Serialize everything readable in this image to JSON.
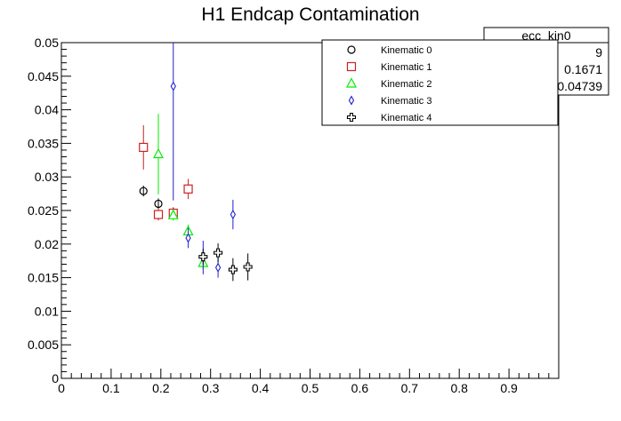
{
  "chart_data": {
    "type": "scatter",
    "title": "H1 Endcap Contamination",
    "xlabel": "",
    "ylabel": "",
    "xlim": [
      0,
      1
    ],
    "ylim": [
      0,
      0.05
    ],
    "x_ticks": [
      "0",
      "0.1",
      "0.2",
      "0.3",
      "0.4",
      "0.5",
      "0.6",
      "0.7",
      "0.8",
      "0.9"
    ],
    "y_ticks": [
      "0",
      "0.005",
      "0.01",
      "0.015",
      "0.02",
      "0.025",
      "0.03",
      "0.035",
      "0.04",
      "0.045",
      "0.05"
    ],
    "grid": false,
    "legend_position": "top-right",
    "series": [
      {
        "name": "Kinematic 0",
        "marker": "circle",
        "color": "#000000",
        "points": [
          {
            "x": 0.165,
            "y": 0.0279,
            "err": 0.0008
          },
          {
            "x": 0.195,
            "y": 0.026,
            "err": 0.0008
          },
          {
            "x": 0.225,
            "y": 0.0246,
            "err": 0.0008
          }
        ]
      },
      {
        "name": "Kinematic 1",
        "marker": "square",
        "color": "#cc2222",
        "points": [
          {
            "x": 0.165,
            "y": 0.0344,
            "err": 0.0033
          },
          {
            "x": 0.195,
            "y": 0.0244,
            "err": 0.0009
          },
          {
            "x": 0.225,
            "y": 0.0246,
            "err": 0.0009
          },
          {
            "x": 0.255,
            "y": 0.0282,
            "err": 0.0015
          }
        ]
      },
      {
        "name": "Kinematic 2",
        "marker": "triangle",
        "color": "#00ee00",
        "points": [
          {
            "x": 0.195,
            "y": 0.0334,
            "err": 0.006
          },
          {
            "x": 0.225,
            "y": 0.0243,
            "err": 0.0008
          },
          {
            "x": 0.255,
            "y": 0.0219,
            "err": 0.001
          },
          {
            "x": 0.285,
            "y": 0.0172,
            "err": 0.001
          }
        ]
      },
      {
        "name": "Kinematic 3",
        "marker": "diamond",
        "color": "#2222cc",
        "points": [
          {
            "x": 0.225,
            "y": 0.0435,
            "err": 0.017
          },
          {
            "x": 0.255,
            "y": 0.0209,
            "err": 0.0015
          },
          {
            "x": 0.285,
            "y": 0.018,
            "err": 0.0025
          },
          {
            "x": 0.315,
            "y": 0.0165,
            "err": 0.0015
          },
          {
            "x": 0.345,
            "y": 0.0244,
            "err": 0.0022
          }
        ]
      },
      {
        "name": "Kinematic 4",
        "marker": "cross",
        "color": "#000000",
        "points": [
          {
            "x": 0.285,
            "y": 0.0181,
            "err": 0.0012
          },
          {
            "x": 0.315,
            "y": 0.0187,
            "err": 0.0014
          },
          {
            "x": 0.345,
            "y": 0.0162,
            "err": 0.0017
          },
          {
            "x": 0.375,
            "y": 0.0166,
            "err": 0.002
          }
        ]
      }
    ],
    "stats_box": {
      "title": "ecc_kin0",
      "values": [
        "9",
        "0.1671",
        "0.04739"
      ]
    }
  }
}
